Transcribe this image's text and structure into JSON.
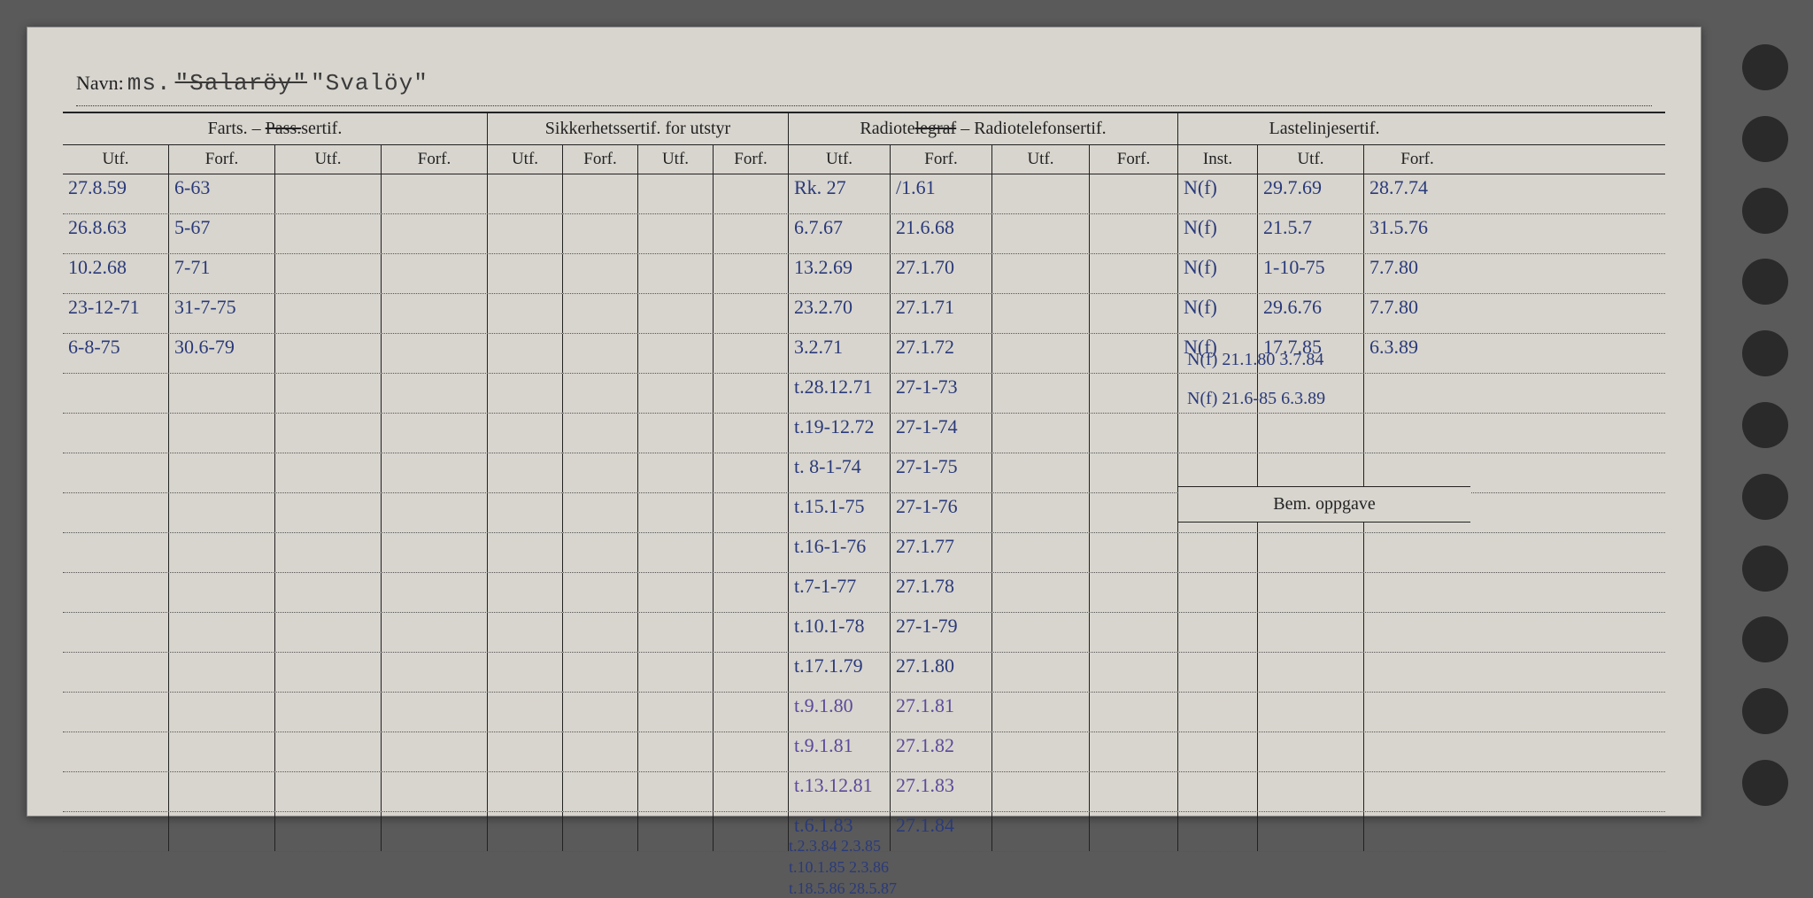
{
  "colors": {
    "paper": "#d8d5ce",
    "ink_printed": "#222222",
    "ink_blue": "#2a3a7a",
    "ink_purple": "#5a4a9a",
    "background": "#5a5a5a",
    "hole": "#2a2a2a"
  },
  "navn": {
    "label": "Navn:",
    "typed_prefix": "ms.",
    "struck": "\"Salaröy\"",
    "current": "\"Svalöy\""
  },
  "headers": {
    "farts": "Farts. – ",
    "farts_struck": "Pass.",
    "farts_suffix": "sertif.",
    "sikk": "Sikkerhetssertif. for utstyr",
    "radio_pre": "Radiote",
    "radio_struck": "legraf",
    "radio_post": " – Radiotelefonsertif.",
    "laste": "Lastelinjesertif.",
    "utf": "Utf.",
    "forf": "Forf.",
    "inst": "Inst.",
    "bem": "Bem. oppgave"
  },
  "rows": [
    {
      "f_utf": "27.8.59",
      "f_forf": "6-63",
      "r_utf": "Rk. 27",
      "r_forf": "/1.61",
      "l_inst": "N(f)",
      "l_utf": "29.7.69",
      "l_forf": "28.7.74"
    },
    {
      "f_utf": "26.8.63",
      "f_forf": "5-67",
      "r_utf": "6.7.67",
      "r_forf": "21.6.68",
      "l_inst": "N(f)",
      "l_utf": "21.5.7",
      "l_forf": "31.5.76"
    },
    {
      "f_utf": "10.2.68",
      "f_forf": "7-71",
      "r_utf": "13.2.69",
      "r_forf": "27.1.70",
      "l_inst": "N(f)",
      "l_utf": "1-10-75",
      "l_forf": "7.7.80"
    },
    {
      "f_utf": "23-12-71",
      "f_forf": "31-7-75",
      "r_utf": "23.2.70",
      "r_forf": "27.1.71",
      "l_inst": "N(f)",
      "l_utf": "29.6.76",
      "l_forf": "7.7.80"
    },
    {
      "f_utf": "6-8-75",
      "f_forf": "30.6-79",
      "r_utf": "3.2.71",
      "r_forf": "27.1.72",
      "l_inst": "N(f)",
      "l_utf": "17.7.85",
      "l_forf": "6.3.89"
    },
    {
      "r_utf": "t.28.12.71",
      "r_forf": "27-1-73"
    },
    {
      "r_utf": "t.19-12.72",
      "r_forf": "27-1-74"
    },
    {
      "r_utf": "t. 8-1-74",
      "r_forf": "27-1-75"
    },
    {
      "r_utf": "t.15.1-75",
      "r_forf": "27-1-76"
    },
    {
      "r_utf": "t.16-1-76",
      "r_forf": "27.1.77"
    },
    {
      "r_utf": "t.7-1-77",
      "r_forf": "27.1.78"
    },
    {
      "r_utf": "t.10.1-78",
      "r_forf": "27-1-79"
    },
    {
      "r_utf": "t.17.1.79",
      "r_forf": "27.1.80"
    },
    {
      "r_utf": "t.9.1.80",
      "r_forf": "27.1.81",
      "purple": true
    },
    {
      "r_utf": "t.9.1.81",
      "r_forf": "27.1.82",
      "purple": true
    },
    {
      "r_utf": "t.13.12.81",
      "r_forf": "27.1.83",
      "purple": true
    },
    {
      "r_utf": "t.6.1.83",
      "r_forf": "27.1.84"
    },
    {
      "r_utf": "t.2.3.84",
      "r_forf": "2.3.85"
    },
    {
      "r_utf": "t.10.1.85",
      "r_forf": "2.3.86"
    },
    {
      "r_utf": "t.18.5.86",
      "r_forf": "28.5.87"
    }
  ],
  "extra_laste": [
    {
      "inst": "N(f)",
      "utf": "21.1.80",
      "forf": "3.7.84"
    },
    {
      "inst": "N(f)",
      "utf": "21.6-85",
      "forf": "6.3.89"
    }
  ],
  "hole_count": 11,
  "bem_row_index": 8
}
